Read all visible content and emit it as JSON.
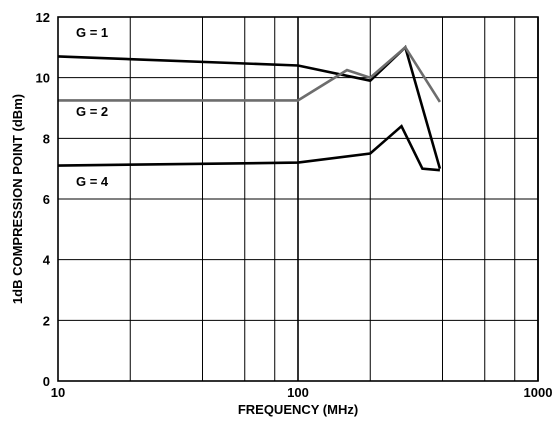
{
  "chart_data": {
    "type": "line",
    "xscale": "log",
    "xlim": [
      10,
      1000
    ],
    "ylim": [
      0,
      12
    ],
    "xlabel": "FREQUENCY (MHz)",
    "ylabel": "1dB COMPRESSION POINT (dBm)",
    "xtick_labels": [
      "10",
      "100",
      "1000"
    ],
    "xtick_values": [
      10,
      100,
      1000
    ],
    "ytick_labels": [
      "0",
      "2",
      "4",
      "6",
      "8",
      "10",
      "12"
    ],
    "ytick_values": [
      0,
      2,
      4,
      6,
      8,
      10,
      12
    ],
    "grid": true,
    "colors": {
      "black": "#000000",
      "gray": "#6d6d6d"
    },
    "series": [
      {
        "name": "G = 1",
        "color": "#000000",
        "x": [
          10,
          100,
          200,
          280,
          390
        ],
        "y": [
          10.7,
          10.4,
          9.9,
          11.0,
          7.0
        ],
        "label_at": [
          10.0,
          11.5
        ]
      },
      {
        "name": "G = 2",
        "color": "#6d6d6d",
        "x": [
          10,
          100,
          160,
          200,
          280,
          390
        ],
        "y": [
          9.25,
          9.25,
          10.25,
          10.0,
          11.0,
          9.2
        ],
        "label_at": [
          10.0,
          8.9
        ]
      },
      {
        "name": "G = 4",
        "color": "#000000",
        "x": [
          10,
          100,
          200,
          270,
          330,
          390
        ],
        "y": [
          7.1,
          7.2,
          7.5,
          8.4,
          7.0,
          6.95
        ],
        "label_at": [
          10.0,
          6.6
        ]
      }
    ]
  }
}
